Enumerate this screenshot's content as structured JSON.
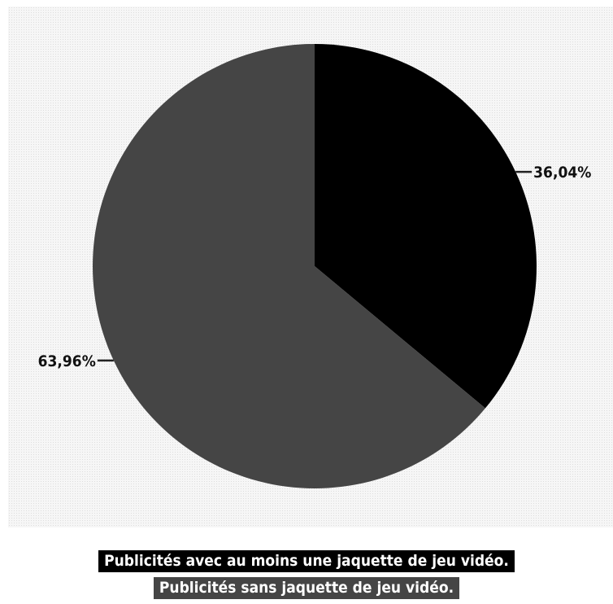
{
  "chart_data": {
    "type": "pie",
    "slices": [
      {
        "label": "Publicités avec au moins une jaquette de jeu vidéo.",
        "value": 36.04,
        "display": "36,04%",
        "color": "#000000"
      },
      {
        "label": "Publicités sans jaquette de jeu vidéo.",
        "value": 63.96,
        "display": "63,96%",
        "color": "#454545"
      }
    ],
    "legend_placement": "bottom",
    "start_angle": "12 o'clock, clockwise"
  }
}
